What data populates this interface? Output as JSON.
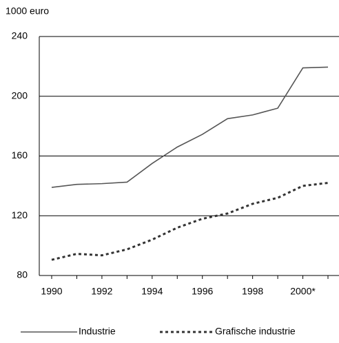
{
  "chart_data": {
    "type": "line",
    "y_label": "1000 euro",
    "categories": [
      "1990",
      null,
      "1992",
      null,
      "1994",
      null,
      "1996",
      null,
      "1998",
      null,
      "2000*",
      null
    ],
    "series": [
      {
        "name": "Industrie",
        "color": "#555555",
        "dash": "solid",
        "values": [
          139,
          141,
          141.5,
          142.5,
          155,
          166,
          174.5,
          185,
          187.5,
          192,
          219,
          219.5
        ]
      },
      {
        "name": "Grafische industrie",
        "color": "#333333",
        "dash": "dotted",
        "values": [
          90.5,
          94.5,
          93.5,
          97.5,
          104,
          112,
          118,
          121.5,
          128,
          132,
          140,
          142
        ]
      }
    ],
    "ylim": [
      80,
      240
    ],
    "yticks": [
      80,
      120,
      160,
      200,
      240
    ],
    "grid": true
  }
}
